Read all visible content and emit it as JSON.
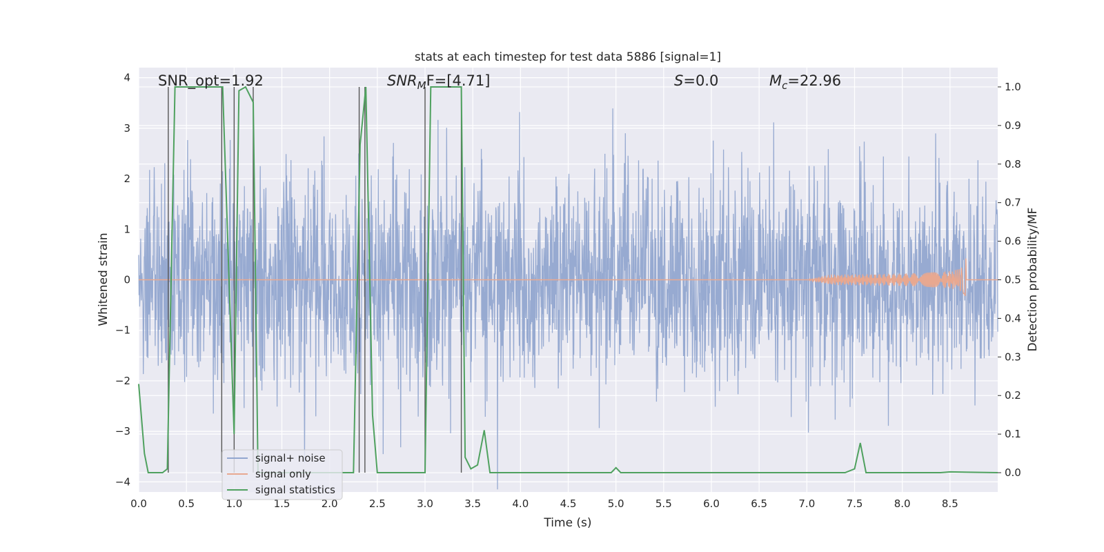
{
  "chart_data": {
    "type": "line",
    "title": "stats at each timestep for test data 5886 [signal=1]",
    "xlabel": "Time (s)",
    "ylabel": "Whitened strain",
    "ylabel_right": "Detection probability/MF",
    "xlim": [
      0.0,
      9.0
    ],
    "ylim": [
      -4.2,
      4.2
    ],
    "ylim_right": [
      -0.05,
      1.05
    ],
    "xticks": [
      0.0,
      0.5,
      1.0,
      1.5,
      2.0,
      2.5,
      3.0,
      3.5,
      4.0,
      4.5,
      5.0,
      5.5,
      6.0,
      6.5,
      7.0,
      7.5,
      8.0,
      8.5
    ],
    "xtick_labels": [
      "0.0",
      "0.5",
      "1.0",
      "1.5",
      "2.0",
      "2.5",
      "3.0",
      "3.5",
      "4.0",
      "4.5",
      "5.0",
      "5.5",
      "6.0",
      "6.5",
      "7.0",
      "7.5",
      "8.0",
      "8.5"
    ],
    "yticks": [
      -4,
      -3,
      -2,
      -1,
      0,
      1,
      2,
      3,
      4
    ],
    "ytick_labels": [
      "−4",
      "−3",
      "−2",
      "−1",
      "0",
      "1",
      "2",
      "3",
      "4"
    ],
    "yticks_right": [
      0.0,
      0.1,
      0.2,
      0.3,
      0.4,
      0.5,
      0.6,
      0.7,
      0.8,
      0.9,
      1.0
    ],
    "ytick_labels_right": [
      "0.0",
      "0.1",
      "0.2",
      "0.3",
      "0.4",
      "0.5",
      "0.6",
      "0.7",
      "0.8",
      "0.9",
      "1.0"
    ],
    "grid": true,
    "legend_position": "lower-left",
    "annotations": [
      {
        "text": "SNR_opt=1.92"
      },
      {
        "base": "SNR",
        "sub": "M",
        "rest": "F=[4.71]"
      },
      {
        "base": "S",
        "rest": "=0.0"
      },
      {
        "base": "M",
        "sub": "c",
        "rest": "=22.96"
      }
    ],
    "series": [
      {
        "name": "signal+ noise",
        "color": "#92a6cf",
        "kind": "noise",
        "sigma": 1.0
      },
      {
        "name": "signal only",
        "color": "#e8a890",
        "kind": "chirp",
        "x_start": 7.0,
        "x_end": 8.67,
        "amplitude_max": 0.45
      },
      {
        "name": "signal statistics",
        "color": "#4fa15f",
        "axis": "right",
        "x": [
          0.0,
          0.06,
          0.1,
          0.25,
          0.3,
          0.38,
          0.88,
          1.0,
          1.05,
          1.12,
          1.2,
          1.25,
          2.25,
          2.32,
          2.38,
          2.45,
          2.5,
          3.0,
          3.06,
          3.38,
          3.42,
          3.48,
          3.55,
          3.62,
          3.68,
          3.75,
          4.95,
          5.0,
          5.05,
          7.4,
          7.5,
          7.56,
          7.62,
          8.4,
          8.5,
          9.0
        ],
        "y": [
          0.23,
          0.05,
          0.0,
          0.0,
          0.01,
          1.0,
          1.0,
          0.1,
          0.99,
          1.0,
          0.96,
          0.0,
          0.0,
          0.85,
          1.0,
          0.15,
          0.0,
          0.0,
          1.0,
          1.0,
          0.04,
          0.01,
          0.02,
          0.11,
          0.0,
          0.0,
          0.0,
          0.013,
          0.0,
          0.0,
          0.01,
          0.077,
          0.0,
          0.0,
          0.002,
          0.0
        ]
      }
    ],
    "vlines": [
      {
        "x": 0.31,
        "y_top": 1.0
      },
      {
        "x": 0.87,
        "y_top": 1.0
      },
      {
        "x": 1.0,
        "y_top": 1.0
      },
      {
        "x": 1.2,
        "y_top": 1.0
      },
      {
        "x": 2.31,
        "y_top": 1.0
      },
      {
        "x": 2.37,
        "y_top": 1.0
      },
      {
        "x": 3.0,
        "y_top": 1.0
      },
      {
        "x": 3.38,
        "y_top": 1.0
      }
    ]
  }
}
